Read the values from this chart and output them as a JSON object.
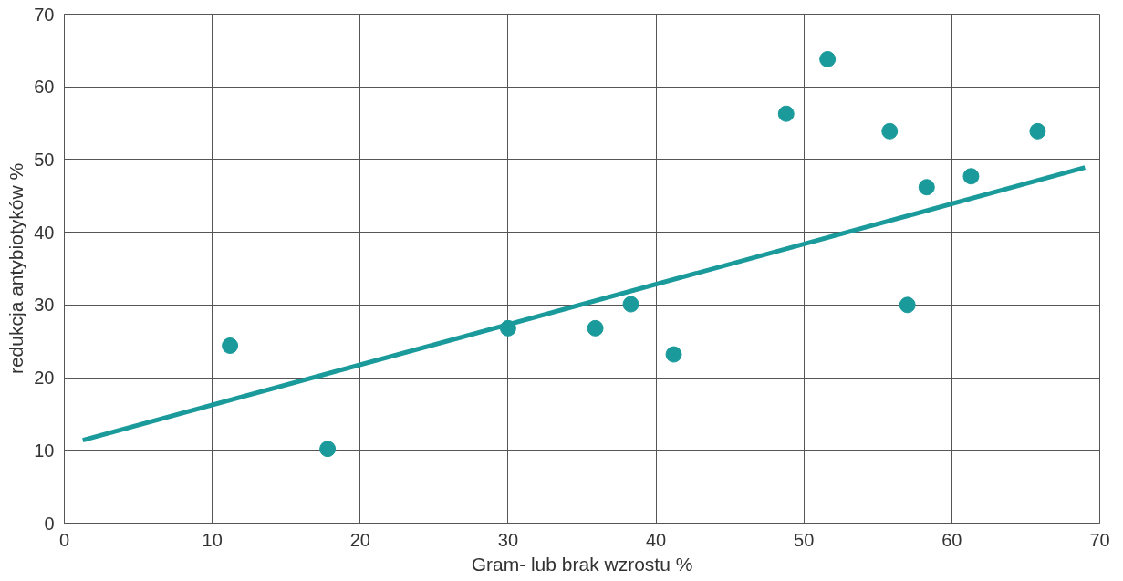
{
  "chart_data": {
    "type": "scatter",
    "xlabel": "Gram- lub brak wzrostu %",
    "ylabel": "redukcja antybiotyków %",
    "xlim": [
      0,
      70
    ],
    "ylim": [
      0,
      70
    ],
    "xticks": [
      0,
      10,
      20,
      30,
      40,
      50,
      60,
      70
    ],
    "yticks": [
      0,
      10,
      20,
      30,
      40,
      50,
      60,
      70
    ],
    "grid": true,
    "series": [
      {
        "marker": "circle",
        "color": "#1a9a9a",
        "x": [
          11.2,
          17.8,
          30.0,
          35.9,
          38.3,
          41.2,
          48.8,
          51.6,
          55.8,
          57.0,
          58.3,
          61.3,
          65.8
        ],
        "values": [
          24.4,
          10.2,
          26.8,
          26.8,
          30.1,
          23.2,
          56.3,
          63.8,
          53.9,
          30.0,
          46.2,
          47.7,
          53.9
        ]
      },
      {
        "type": "line",
        "color": "#1a9a9a",
        "x": [
          1.25,
          69
        ],
        "values": [
          11.4,
          48.9
        ]
      }
    ]
  }
}
